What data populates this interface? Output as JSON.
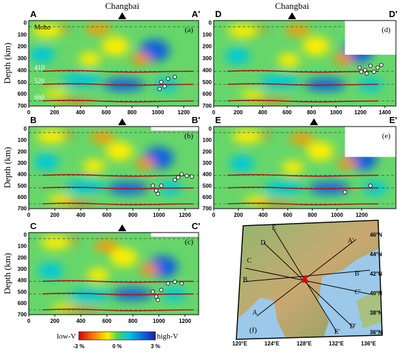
{
  "panels": [
    {
      "start": "A",
      "end": "A'",
      "label": "(a)",
      "top_label": "Changbai",
      "depth_title": "Depth (km)",
      "layers": [
        "Moho",
        "410",
        "520",
        "660"
      ],
      "x_ticks": [
        "0",
        "200",
        "400",
        "600",
        "800",
        "1000",
        "1200"
      ],
      "depth_ticks": [
        "0",
        "100",
        "200",
        "300",
        "400",
        "500",
        "600",
        "700"
      ]
    },
    {
      "start": "D",
      "end": "D'",
      "label": "(d)",
      "top_label": "Changbai",
      "x_ticks": [
        "0",
        "200",
        "400",
        "600",
        "800",
        "1000",
        "1200",
        "1400"
      ],
      "depth_ticks": [
        "0",
        "100",
        "200",
        "300",
        "400",
        "500",
        "600",
        "700"
      ]
    },
    {
      "start": "B",
      "end": "B'",
      "label": "(b)",
      "depth_title": "Depth (km)",
      "x_ticks": [
        "0",
        "200",
        "400",
        "600",
        "800",
        "1000",
        "1200"
      ],
      "depth_ticks": [
        "0",
        "100",
        "200",
        "300",
        "400",
        "500",
        "600",
        "700"
      ]
    },
    {
      "start": "E",
      "end": "E'",
      "label": "(e)",
      "x_ticks": [
        "0",
        "200",
        "400",
        "600",
        "800",
        "1000",
        "1200"
      ],
      "depth_ticks": [
        "0",
        "100",
        "200",
        "300",
        "400",
        "500",
        "600",
        "700"
      ]
    },
    {
      "start": "C",
      "end": "C'",
      "label": "(c)",
      "depth_title": "Depth (km)",
      "x_ticks": [
        "0",
        "200",
        "400",
        "600",
        "800",
        "1000",
        "1200"
      ],
      "depth_ticks": [
        "0",
        "100",
        "200",
        "300",
        "400",
        "500",
        "600",
        "700"
      ]
    }
  ],
  "colorbar": {
    "low": "low-V",
    "high": "high-V",
    "ticks": [
      "-3 %",
      "0 %",
      "3 %"
    ]
  },
  "map": {
    "label": "(f)",
    "lon": [
      "120°E",
      "124°E",
      "128°E",
      "132°E",
      "136°E"
    ],
    "lat": [
      "46°N",
      "44°N",
      "42°N",
      "40°N",
      "38°N",
      "36°N"
    ],
    "profiles": [
      "A",
      "A'",
      "B",
      "B'",
      "C",
      "C'",
      "D",
      "D'",
      "E",
      "E'"
    ]
  }
}
